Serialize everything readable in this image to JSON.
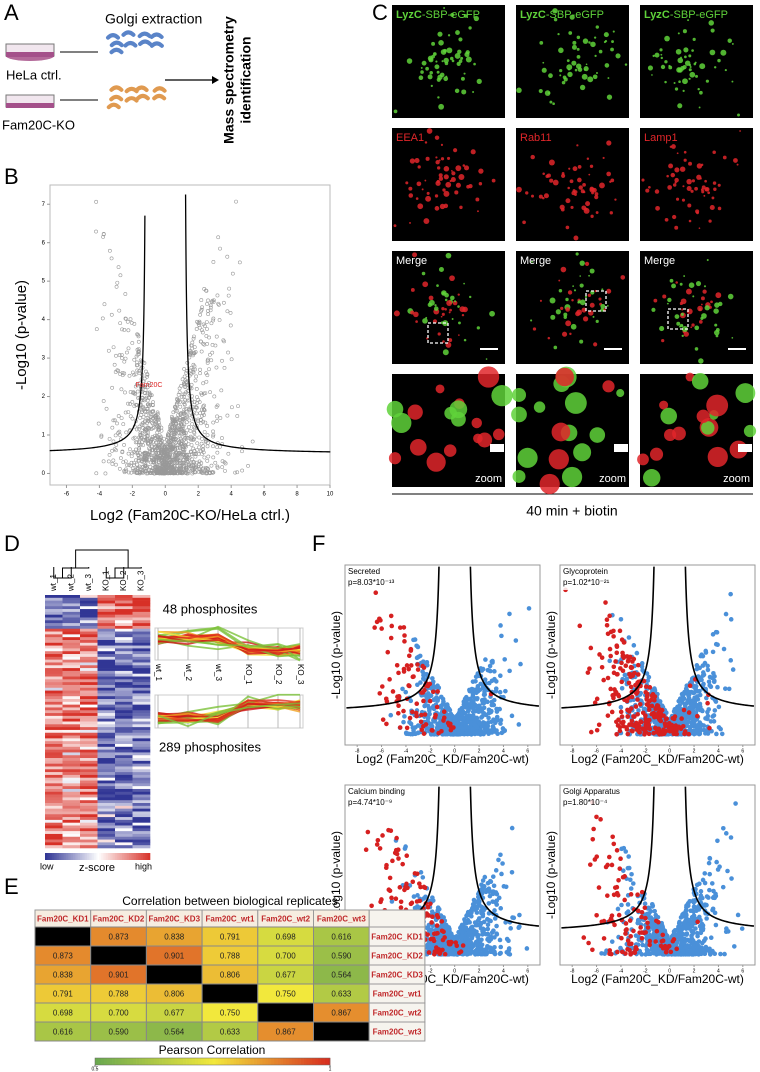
{
  "panel_a": {
    "label": "A",
    "golgi": "Golgi extraction",
    "ctrl": "HeLa ctrl.",
    "ko": "Fam20C-KO",
    "ms": [
      "Mass spectrometry",
      "identification"
    ]
  },
  "panel_b": {
    "label": "B",
    "ylabel": "-Log10 (p-value)",
    "xlabel": "Log2 (Fam20C-KO/HeLa ctrl.)",
    "xlim": [
      -7,
      10
    ],
    "ylim": [
      -0.3,
      7.5
    ],
    "xticks": [
      -6,
      -4,
      -2,
      0,
      2,
      4,
      6,
      8,
      10
    ],
    "yticks": [
      0,
      1,
      2,
      3,
      4,
      5,
      6,
      7
    ],
    "point_label": "Fam20C"
  },
  "panel_c": {
    "label": "C",
    "protein": "LyzC",
    "tag": "-SBP-eGFP",
    "markers": [
      "EEA1",
      "Rab11",
      "Lamp1"
    ],
    "merge": "Merge",
    "zoom": "zoom",
    "footer": "40 min + biotin"
  },
  "panel_d": {
    "label": "D",
    "samples": [
      "wt_1",
      "wt_2",
      "wt_3",
      "KO_1",
      "KO_2",
      "KO_3"
    ],
    "cluster_up": "48 phosphosites",
    "cluster_down": "289 phosphosites",
    "low": "low",
    "scale": "z-score",
    "high": "high"
  },
  "panel_f": {
    "label": "F",
    "ylabel": "-Log10 (p-value)",
    "xlabel": "Log2 (Fam20C_KD/Fam20C-wt)",
    "xlim": [
      -9,
      7
    ],
    "ylim": [
      -0.5,
      8
    ],
    "xticks": [
      -8,
      -6,
      -4,
      -2,
      0,
      2,
      4,
      6
    ],
    "plots": [
      {
        "title": "Secreted",
        "p": "p=8.03*10⁻¹³"
      },
      {
        "title": "Glycoprotein",
        "p": "p=1.02*10⁻²¹"
      },
      {
        "title": "Calcium binding",
        "p": "p=4.74*10⁻⁹"
      },
      {
        "title": "Golgi Apparatus",
        "p": "p=1.80*10⁻⁴"
      }
    ]
  },
  "panel_e": {
    "label": "E",
    "title": "Correlation between biological replicates",
    "columns": [
      "Fam20C_KD1",
      "Fam20C_KD2",
      "Fam20C_KD3",
      "Fam20C_wt1",
      "Fam20C_wt2",
      "Fam20C_wt3"
    ],
    "rows": [
      [
        null,
        "0.873",
        "0.838",
        "0.791",
        "0.698",
        "0.616"
      ],
      [
        "0.873",
        null,
        "0.901",
        "0.788",
        "0.700",
        "0.590"
      ],
      [
        "0.838",
        "0.901",
        null,
        "0.806",
        "0.677",
        "0.564"
      ],
      [
        "0.791",
        "0.788",
        "0.806",
        null,
        "0.750",
        "0.633"
      ],
      [
        "0.698",
        "0.700",
        "0.677",
        "0.750",
        null,
        "0.867"
      ],
      [
        "0.616",
        "0.590",
        "0.564",
        "0.633",
        "0.867",
        null
      ]
    ],
    "colorbar_label": "Pearson Correlation",
    "colorbar_ticks": [
      0.5,
      1
    ]
  }
}
